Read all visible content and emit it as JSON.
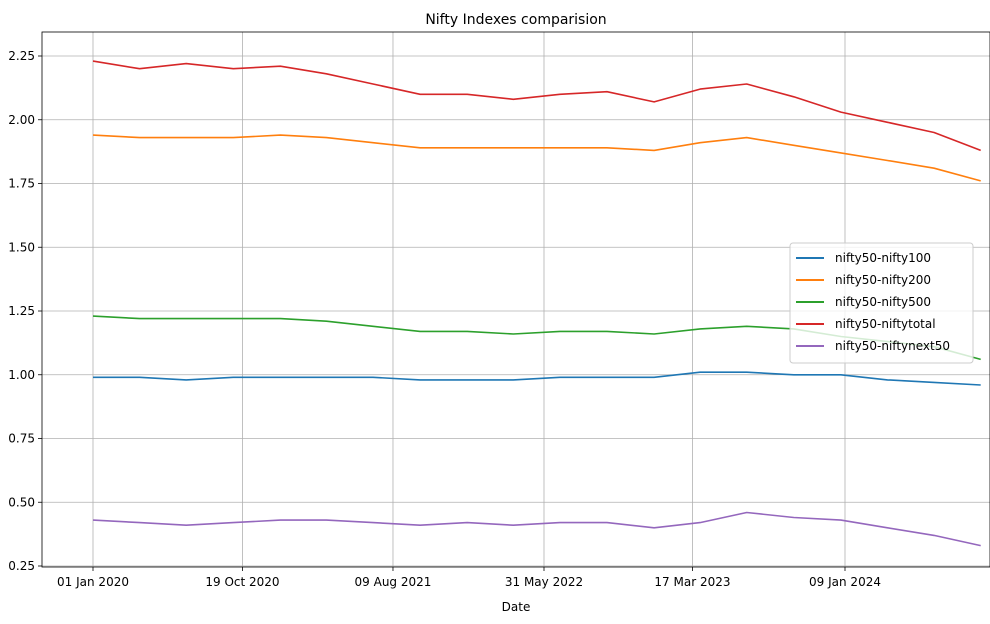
{
  "chart_data": {
    "type": "line",
    "title": "Nifty Indexes comparision",
    "xlabel": "Date",
    "ylabel": "",
    "ylim": [
      0.25,
      2.25
    ],
    "grid": true,
    "legend_position": "center-right",
    "x_dates": [
      "2020-01-01",
      "2020-04-01",
      "2020-07-01",
      "2020-10-01",
      "2021-01-01",
      "2021-04-01",
      "2021-07-01",
      "2021-10-01",
      "2022-01-01",
      "2022-04-01",
      "2022-07-01",
      "2022-10-01",
      "2023-01-01",
      "2023-04-01",
      "2023-07-01",
      "2023-10-01",
      "2024-01-01",
      "2024-04-01",
      "2024-07-01",
      "2024-09-30"
    ],
    "x_ticks": [
      {
        "date": "2020-01-01",
        "label": "01 Jan 2020"
      },
      {
        "date": "2020-10-19",
        "label": "19 Oct 2020"
      },
      {
        "date": "2021-08-09",
        "label": "09 Aug 2021"
      },
      {
        "date": "2022-05-31",
        "label": "31 May 2022"
      },
      {
        "date": "2023-03-17",
        "label": "17 Mar 2023"
      },
      {
        "date": "2024-01-09",
        "label": "09 Jan 2024"
      }
    ],
    "y_ticks": [
      "0.25",
      "0.50",
      "0.75",
      "1.00",
      "1.25",
      "1.50",
      "1.75",
      "2.00",
      "2.25"
    ],
    "series": [
      {
        "name": "nifty50-nifty100",
        "color": "#1f77b4",
        "values": [
          0.99,
          0.99,
          0.98,
          0.99,
          0.99,
          0.99,
          0.99,
          0.98,
          0.98,
          0.98,
          0.99,
          0.99,
          0.99,
          1.01,
          1.01,
          1.0,
          1.0,
          0.98,
          0.97,
          0.96
        ]
      },
      {
        "name": "nifty50-nifty200",
        "color": "#ff7f0e",
        "values": [
          1.94,
          1.93,
          1.93,
          1.93,
          1.94,
          1.93,
          1.91,
          1.89,
          1.89,
          1.89,
          1.89,
          1.89,
          1.88,
          1.91,
          1.93,
          1.9,
          1.87,
          1.84,
          1.81,
          1.76
        ]
      },
      {
        "name": "nifty50-nifty500",
        "color": "#2ca02c",
        "values": [
          1.23,
          1.22,
          1.22,
          1.22,
          1.22,
          1.21,
          1.19,
          1.17,
          1.17,
          1.16,
          1.17,
          1.17,
          1.16,
          1.18,
          1.19,
          1.18,
          1.15,
          1.13,
          1.11,
          1.06
        ]
      },
      {
        "name": "nifty50-niftytotal",
        "color": "#d62728",
        "values": [
          2.23,
          2.2,
          2.22,
          2.2,
          2.21,
          2.18,
          2.14,
          2.1,
          2.1,
          2.08,
          2.1,
          2.11,
          2.07,
          2.12,
          2.14,
          2.09,
          2.03,
          1.99,
          1.95,
          1.88
        ]
      },
      {
        "name": "nifty50-niftynext50",
        "color": "#9467bd",
        "values": [
          0.43,
          0.42,
          0.41,
          0.42,
          0.43,
          0.43,
          0.42,
          0.41,
          0.42,
          0.41,
          0.42,
          0.42,
          0.4,
          0.42,
          0.46,
          0.44,
          0.43,
          0.4,
          0.37,
          0.33
        ]
      }
    ]
  }
}
